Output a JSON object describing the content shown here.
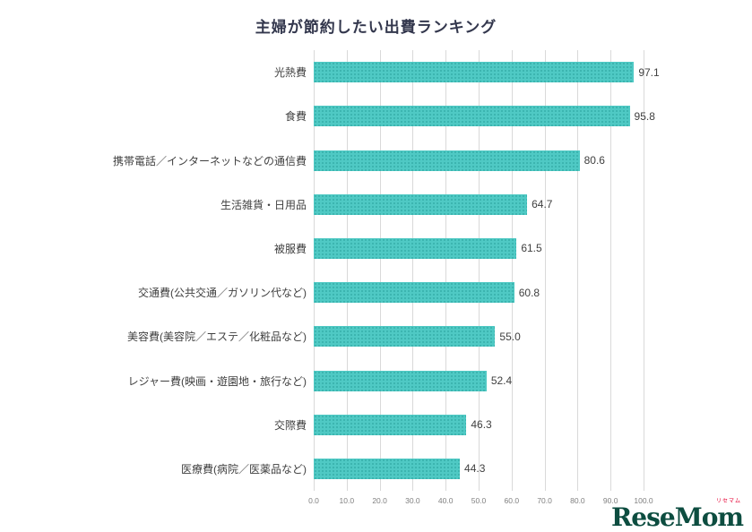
{
  "watermark": {
    "text": "ReseMom",
    "ruby": "リセマム"
  },
  "chart_data": {
    "type": "bar",
    "orientation": "horizontal",
    "title": "主婦が節約したい出費ランキング",
    "categories": [
      "光熱費",
      "食費",
      "携帯電話／インターネットなどの通信費",
      "生活雑貨・日用品",
      "被服費",
      "交通費(公共交通／ガソリン代など)",
      "美容費(美容院／エステ／化粧品など)",
      "レジャー費(映画・遊園地・旅行など)",
      "交際費",
      "医療費(病院／医薬品など)"
    ],
    "values": [
      97.1,
      95.8,
      80.6,
      64.7,
      61.5,
      60.8,
      55.0,
      52.4,
      46.3,
      44.3
    ],
    "xlim": [
      0,
      100
    ],
    "x_ticks": [
      "0.0",
      "10.0",
      "20.0",
      "30.0",
      "40.0",
      "50.0",
      "60.0",
      "70.0",
      "80.0",
      "90.0",
      "100.0"
    ],
    "bar_color": "#4fc9c4",
    "bar_dot_color": "#35aeaa",
    "gridline_color": "#d9d9d9",
    "value_label_color": "#404040",
    "grid": true,
    "legend_position": "none"
  }
}
